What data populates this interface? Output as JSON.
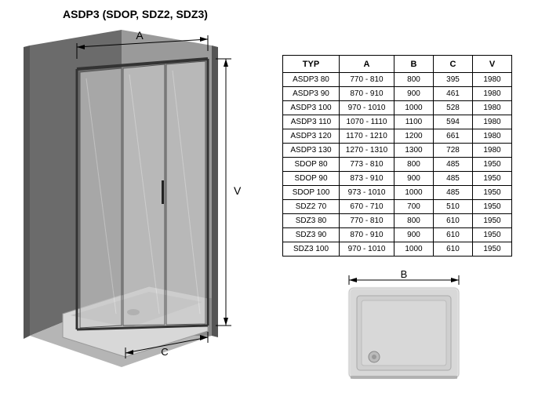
{
  "title": "ASDP3 (SDOP, SDZ2, SDZ3)",
  "table": {
    "columns": [
      "TYP",
      "A",
      "B",
      "C",
      "V"
    ],
    "rows": [
      [
        "ASDP3 80",
        "770 - 810",
        "800",
        "395",
        "1980"
      ],
      [
        "ASDP3 90",
        "870 - 910",
        "900",
        "461",
        "1980"
      ],
      [
        "ASDP3 100",
        "970 - 1010",
        "1000",
        "528",
        "1980"
      ],
      [
        "ASDP3 110",
        "1070 - 1110",
        "1100",
        "594",
        "1980"
      ],
      [
        "ASDP3 120",
        "1170 - 1210",
        "1200",
        "661",
        "1980"
      ],
      [
        "ASDP3 130",
        "1270 - 1310",
        "1300",
        "728",
        "1980"
      ],
      [
        "SDOP 80",
        "773 - 810",
        "800",
        "485",
        "1950"
      ],
      [
        "SDOP 90",
        "873 - 910",
        "900",
        "485",
        "1950"
      ],
      [
        "SDOP 100",
        "973 - 1010",
        "1000",
        "485",
        "1950"
      ],
      [
        "SDZ2 70",
        "670 - 710",
        "700",
        "510",
        "1950"
      ],
      [
        "SDZ3 80",
        "770 - 810",
        "800",
        "610",
        "1950"
      ],
      [
        "SDZ3 90",
        "870 - 910",
        "900",
        "610",
        "1950"
      ],
      [
        "SDZ3 100",
        "970 - 1010",
        "1000",
        "610",
        "1950"
      ]
    ]
  },
  "diagram_main": {
    "labels": {
      "A": "A",
      "V": "V",
      "C": "C"
    },
    "colors": {
      "wall_dark": "#6b6b6b",
      "wall_light": "#9a9a9a",
      "floor": "#8a8a8a",
      "floor_light": "#b5b5b5",
      "tray": "#d0d0d0",
      "glass": "#c8c8c8",
      "glass_stroke": "#555",
      "frame": "#333",
      "dim_line": "#000"
    }
  },
  "diagram_tray": {
    "label_B": "B",
    "colors": {
      "fill": "#d8d8d8",
      "rim_light": "#f0f0f0",
      "rim_dark": "#888",
      "line": "#000"
    }
  }
}
